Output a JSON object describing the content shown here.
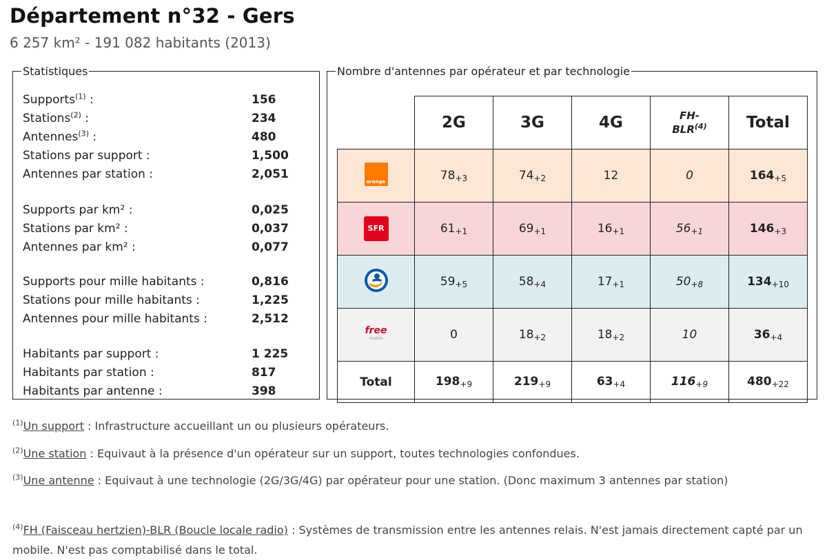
{
  "header": {
    "title": "Département n°32 - Gers",
    "subtitle": "6 257 km² - 191 082 habitants (2013)"
  },
  "stats": {
    "legend": "Statistiques",
    "rows": [
      {
        "label": "Supports",
        "sup": "(1)",
        "suffix": " :",
        "value": "156"
      },
      {
        "label": "Stations",
        "sup": "(2)",
        "suffix": " :",
        "value": "234"
      },
      {
        "label": "Antennes",
        "sup": "(3)",
        "suffix": " :",
        "value": "480"
      },
      {
        "label": "Stations par support :",
        "value": "1,500"
      },
      {
        "label": "Antennes par station :",
        "value": "2,051"
      },
      {
        "label": "Supports par km² :",
        "value": "0,025"
      },
      {
        "label": "Stations par km² :",
        "value": "0,037"
      },
      {
        "label": "Antennes par km² :",
        "value": "0,077"
      },
      {
        "label": "Supports pour mille habitants :",
        "value": "0,816"
      },
      {
        "label": "Stations pour mille habitants :",
        "value": "1,225"
      },
      {
        "label": "Antennes pour mille habitants :",
        "value": "2,512"
      },
      {
        "label": "Habitants par support :",
        "value": "1 225"
      },
      {
        "label": "Habitants par station :",
        "value": "817"
      },
      {
        "label": "Habitants par antenne :",
        "value": "398"
      }
    ]
  },
  "antennas": {
    "legend": "Nombre d'antennes par opérateur et par technologie",
    "headers": {
      "c2g": "2G",
      "c3g": "3G",
      "c4g": "4G",
      "fh_line1": "FH-",
      "fh_line2": "BLR",
      "fh_sup": "(4)",
      "total": "Total"
    },
    "operators": [
      {
        "name": "orange",
        "logo_text": "orange",
        "color": "#ff7900",
        "c2g": "78",
        "c2g_d": "+3",
        "c3g": "74",
        "c3g_d": "+2",
        "c4g": "12",
        "c4g_d": "",
        "fh": "0",
        "fh_d": "",
        "total": "164",
        "total_d": "+5"
      },
      {
        "name": "sfr",
        "logo_text": "SFR",
        "color": "#e2001a",
        "c2g": "61",
        "c2g_d": "+1",
        "c3g": "69",
        "c3g_d": "+1",
        "c4g": "16",
        "c4g_d": "+1",
        "fh": "56",
        "fh_d": "+1",
        "total": "146",
        "total_d": "+3"
      },
      {
        "name": "bouygues",
        "logo_text": "",
        "color": "#0070c0",
        "c2g": "59",
        "c2g_d": "+5",
        "c3g": "58",
        "c3g_d": "+4",
        "c4g": "17",
        "c4g_d": "+1",
        "fh": "50",
        "fh_d": "+8",
        "total": "134",
        "total_d": "+10"
      },
      {
        "name": "free",
        "logo_text": "free",
        "logo_sub": "mobile",
        "color": "#c8102e",
        "c2g": "0",
        "c2g_d": "",
        "c3g": "18",
        "c3g_d": "+2",
        "c4g": "18",
        "c4g_d": "+2",
        "fh": "10",
        "fh_d": "",
        "total": "36",
        "total_d": "+4"
      }
    ],
    "totals": {
      "label": "Total",
      "c2g": "198",
      "c2g_d": "+9",
      "c3g": "219",
      "c3g_d": "+9",
      "c4g": "63",
      "c4g_d": "+4",
      "fh": "116",
      "fh_d": "+9",
      "total": "480",
      "total_d": "+22"
    }
  },
  "notes": [
    {
      "sup": "(1)",
      "term": "Un support",
      "text": " : Infrastructure accueillant un ou plusieurs opérateurs."
    },
    {
      "sup": "(2)",
      "term": "Une station",
      "text": " : Equivaut à la présence d'un opérateur sur un support, toutes technologies confondues."
    },
    {
      "sup": "(3)",
      "term": "Une antenne",
      "text": " : Equivaut à une technologie (2G/3G/4G) par opérateur pour une station. (Donc maximum 3 antennes par station)"
    },
    {
      "sup": "(4)",
      "term": "FH (Faisceau hertzien)-BLR (Boucle locale radio)",
      "text": " : Systèmes de transmission entre les antennes relais. N'est jamais directement capté par un mobile. N'est pas comptabilisé dans le total."
    }
  ]
}
